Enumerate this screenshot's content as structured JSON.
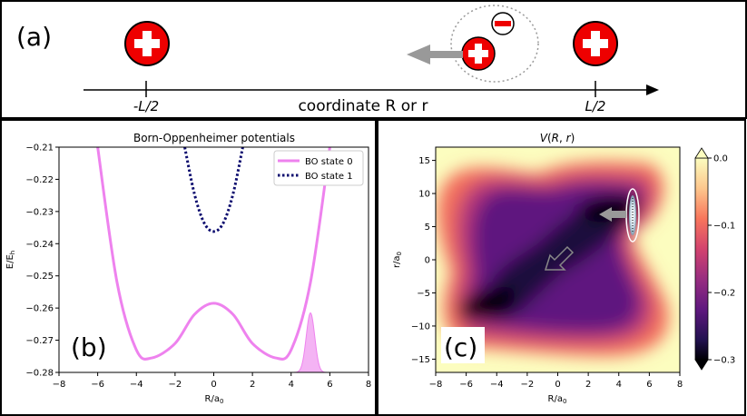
{
  "panel_a": {
    "label": "(a)",
    "tick_left": "-L/2",
    "tick_right": "L/2",
    "axis_label": "coordinate R or r"
  },
  "chart_data": [
    {
      "type": "line",
      "label": "(b)",
      "title": "Born-Oppenheimer potentials",
      "xlabel": "R/a0",
      "ylabel": "E/Eh",
      "xlim": [
        -8,
        8
      ],
      "ylim": [
        -0.28,
        -0.21
      ],
      "xticks": [
        "−8",
        "−6",
        "−4",
        "−2",
        "0",
        "2",
        "4",
        "6",
        "8"
      ],
      "yticks": [
        "−0.21",
        "−0.22",
        "−0.23",
        "−0.24",
        "−0.25",
        "−0.26",
        "−0.27",
        "−0.28"
      ],
      "legend_position": "top-right",
      "series": [
        {
          "name": "BO state 0",
          "style": "solid",
          "color": "#ee82ee",
          "x": [
            -6.0,
            -5.0,
            -4.0,
            -3.2,
            -2.0,
            -1.0,
            0.0,
            1.0,
            2.0,
            3.2,
            4.0,
            5.0,
            6.0
          ],
          "y": [
            -0.21,
            -0.252,
            -0.273,
            -0.2755,
            -0.271,
            -0.262,
            -0.2585,
            -0.262,
            -0.271,
            -0.2755,
            -0.273,
            -0.252,
            -0.21
          ]
        },
        {
          "name": "BO state 1",
          "style": "dotted",
          "color": "#0b0b6e",
          "x": [
            -1.5,
            -1.0,
            -0.5,
            0.0,
            0.5,
            1.0,
            1.5
          ],
          "y": [
            -0.21,
            -0.2245,
            -0.2335,
            -0.2362,
            -0.2335,
            -0.2245,
            -0.21
          ]
        }
      ],
      "wavepacket": {
        "center": 5.0,
        "width": 0.22,
        "peak_energy": -0.2615,
        "color": "#ee82ee"
      }
    },
    {
      "type": "heatmap",
      "label": "(c)",
      "title": "V(R, r)",
      "xlabel": "R/a0",
      "ylabel": "r/a0",
      "xlim": [
        -8,
        8
      ],
      "ylim": [
        -17,
        17
      ],
      "xticks": [
        "−8",
        "−6",
        "−4",
        "−2",
        "0",
        "2",
        "4",
        "6",
        "8"
      ],
      "yticks": [
        "15",
        "10",
        "5",
        "0",
        "−5",
        "−10",
        "−15"
      ],
      "colorbar": {
        "min": -0.3,
        "max": 0.0,
        "ticks": [
          "0.0",
          "−0.1",
          "−0.2",
          "−0.3"
        ],
        "colormap": "magma"
      },
      "wavepacket_center": [
        5.0,
        7.5
      ]
    }
  ]
}
